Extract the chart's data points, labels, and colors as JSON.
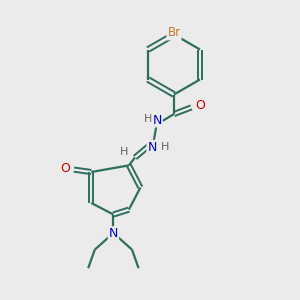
{
  "background_color": "#ebebeb",
  "bond_color": "#2d6e5e",
  "atom_colors": {
    "Br": "#cc7722",
    "O": "#cc0000",
    "N": "#0000cc",
    "H": "#606060",
    "C": "#2d6e5e"
  },
  "figsize": [
    3.0,
    3.0
  ],
  "dpi": 100
}
